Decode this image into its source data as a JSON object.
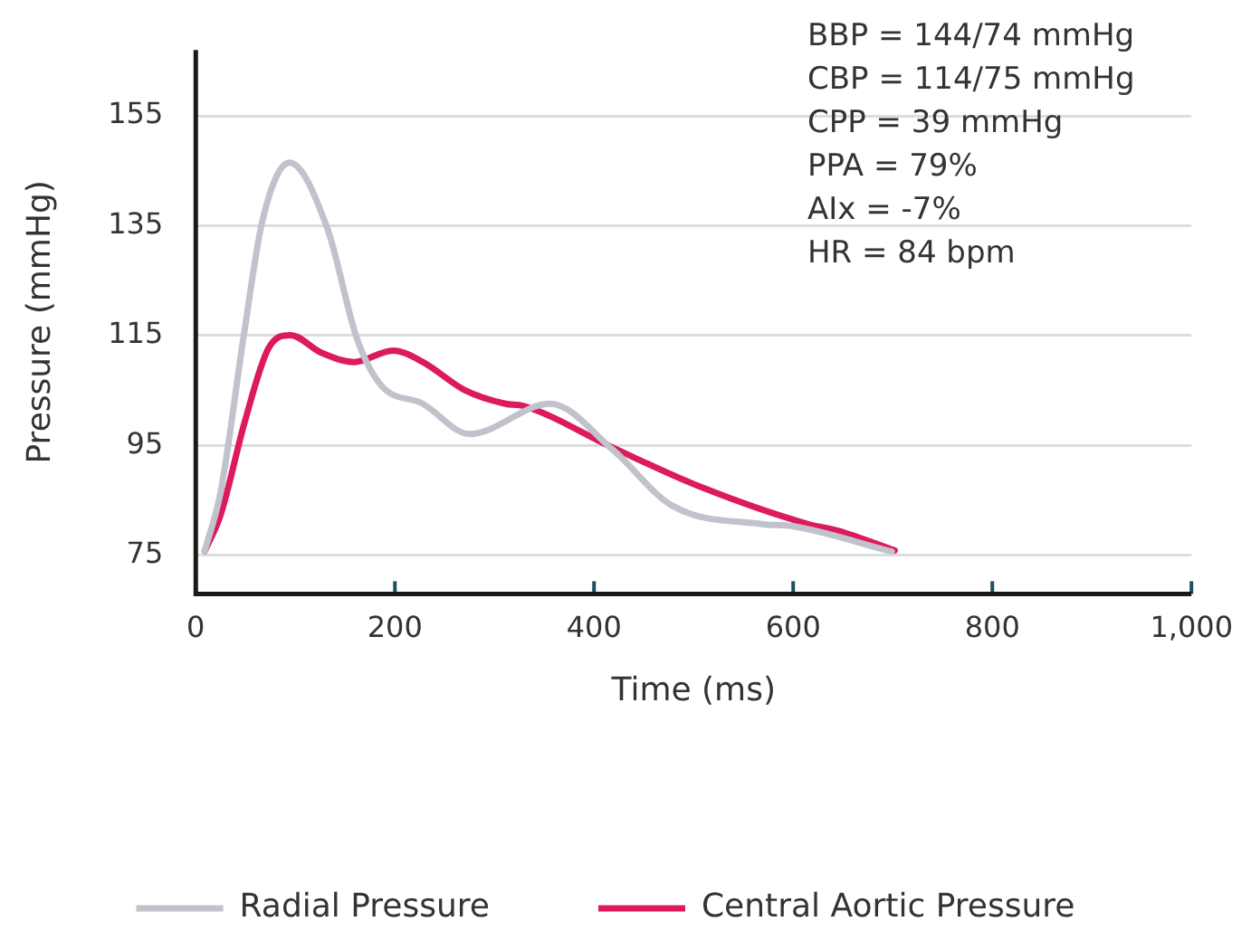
{
  "chart_data": {
    "type": "line",
    "xlabel": "Time (ms)",
    "ylabel": "Pressure (mmHg)",
    "xlim": [
      0,
      1000
    ],
    "xticks": [
      0,
      200,
      400,
      600,
      800,
      {
        "value": 1000,
        "label": "1,000"
      }
    ],
    "ylim": [
      68,
      167
    ],
    "yticks": [
      75,
      95,
      115,
      135,
      155
    ],
    "grid": "y",
    "legend": "bottom",
    "marker": "none",
    "line_style": "solid",
    "annotations": [
      "BBP = 144/74 mmHg",
      "CBP = 114/75 mmHg",
      "CPP = 39 mmHg",
      "PPA = 79%",
      "AIx = -7%",
      "HR = 84 bpm"
    ],
    "series": [
      {
        "name": "Radial Pressure",
        "color": "#c0c3cc",
        "x": [
          9,
          25,
          49,
          67,
          94,
          132,
          162,
          186,
          228,
          275,
          356,
          419,
          478,
          568,
          600,
          699
        ],
        "values": [
          75.8,
          86.6,
          116,
          136,
          146.5,
          134.6,
          114.4,
          106,
          102.6,
          97.1,
          102.6,
          94.2,
          84.1,
          80.7,
          80.3,
          75.7
        ]
      },
      {
        "name": "Central Aortic Pressure",
        "color": "#dc1a5c",
        "x": [
          9,
          25,
          49,
          73,
          95,
          126,
          159,
          198,
          228,
          270,
          311,
          329,
          419,
          508,
          615,
          645,
          702
        ],
        "values": [
          75.8,
          82.4,
          99.2,
          112.7,
          115.1,
          111.9,
          110.2,
          112.3,
          110.2,
          105.1,
          102.6,
          102.2,
          94.6,
          87.4,
          80.7,
          79.5,
          75.9
        ]
      }
    ]
  }
}
